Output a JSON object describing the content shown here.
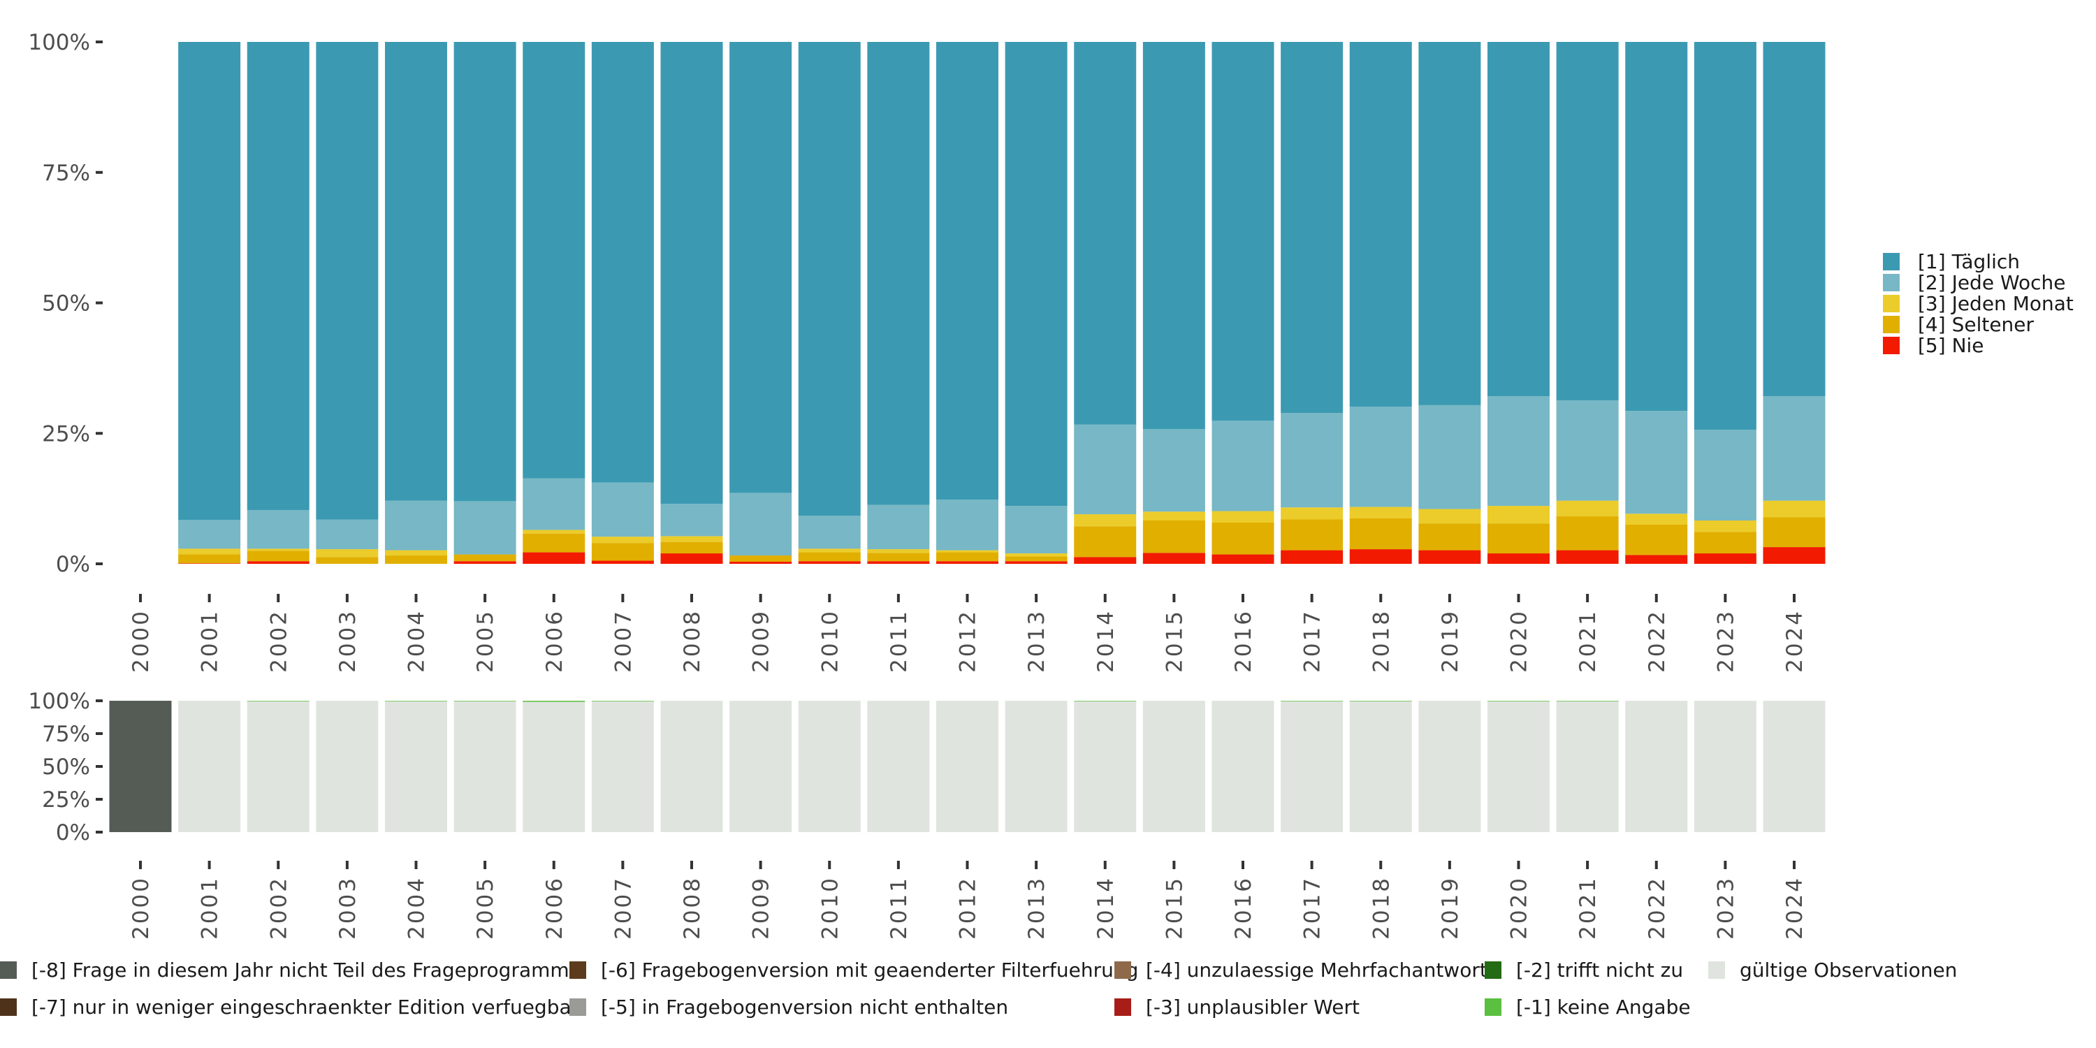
{
  "chart_data": [
    {
      "type": "bar",
      "stacked": true,
      "normalized": true,
      "title": "",
      "xlabel": "",
      "ylabel": "",
      "ylim": [
        0,
        100
      ],
      "yticks": [
        "0%",
        "25%",
        "50%",
        "75%",
        "100%"
      ],
      "grid": false,
      "legend_position": "right",
      "categories": [
        "2000",
        "2001",
        "2002",
        "2003",
        "2004",
        "2005",
        "2006",
        "2007",
        "2008",
        "2009",
        "2010",
        "2011",
        "2012",
        "2013",
        "2014",
        "2015",
        "2016",
        "2017",
        "2018",
        "2019",
        "2020",
        "2021",
        "2022",
        "2023",
        "2024"
      ],
      "series": [
        {
          "name": "[5] Nie",
          "color": "#F21A00",
          "values": [
            null,
            0.1,
            0.5,
            0.0,
            0.0,
            0.5,
            2.2,
            0.6,
            2.0,
            0.4,
            0.5,
            0.5,
            0.5,
            0.5,
            1.3,
            2.1,
            1.8,
            2.6,
            2.8,
            2.6,
            2.0,
            2.6,
            1.7,
            2.0,
            3.2
          ]
        },
        {
          "name": "[4] Seltener",
          "color": "#E1AF00",
          "values": [
            null,
            1.7,
            2.0,
            1.3,
            1.6,
            1.3,
            3.6,
            3.4,
            2.2,
            1.2,
            1.7,
            1.6,
            1.7,
            0.9,
            5.9,
            6.2,
            6.1,
            5.9,
            5.9,
            5.1,
            5.7,
            6.5,
            5.8,
            4.1,
            5.7
          ]
        },
        {
          "name": "[3] Jeden Monat",
          "color": "#EBCC2A",
          "values": [
            null,
            1.1,
            0.4,
            1.5,
            1.0,
            0.0,
            0.7,
            1.2,
            1.1,
            0.0,
            0.7,
            0.7,
            0.4,
            0.6,
            2.3,
            1.7,
            2.2,
            2.3,
            2.2,
            2.8,
            3.4,
            3.0,
            2.1,
            2.2,
            3.2
          ]
        },
        {
          "name": "[2] Jede Woche",
          "color": "#78B7C5",
          "values": [
            null,
            5.5,
            7.4,
            5.7,
            9.5,
            10.2,
            9.9,
            10.4,
            6.2,
            12.0,
            6.3,
            8.5,
            9.7,
            9.1,
            17.2,
            15.8,
            17.3,
            18.1,
            19.2,
            19.9,
            21.0,
            19.2,
            19.7,
            17.4,
            20.0
          ]
        },
        {
          "name": "[1] Täglich",
          "color": "#3B9AB2",
          "values": [
            null,
            91.6,
            89.7,
            91.5,
            87.9,
            88.0,
            83.6,
            84.4,
            88.5,
            86.4,
            90.8,
            88.7,
            87.7,
            88.9,
            73.3,
            74.2,
            72.6,
            71.1,
            69.9,
            69.6,
            67.9,
            68.7,
            70.7,
            74.3,
            67.9
          ]
        }
      ]
    },
    {
      "type": "bar",
      "stacked": true,
      "normalized": true,
      "title": "",
      "xlabel": "",
      "ylabel": "",
      "ylim": [
        0,
        100
      ],
      "yticks": [
        "0%",
        "25%",
        "50%",
        "75%",
        "100%"
      ],
      "grid": false,
      "legend_position": "bottom",
      "categories": [
        "2000",
        "2001",
        "2002",
        "2003",
        "2004",
        "2005",
        "2006",
        "2007",
        "2008",
        "2009",
        "2010",
        "2011",
        "2012",
        "2013",
        "2014",
        "2015",
        "2016",
        "2017",
        "2018",
        "2019",
        "2020",
        "2021",
        "2022",
        "2023",
        "2024"
      ],
      "series": [
        {
          "name": "gültige Observationen",
          "color": "#E0E4DF",
          "values": [
            0,
            100,
            99.6,
            100,
            99.6,
            99.6,
            99.2,
            99.6,
            100,
            100,
            100,
            100,
            100,
            100,
            99.6,
            100,
            100,
            99.6,
            99.6,
            100,
            99.6,
            99.6,
            100,
            100,
            100
          ]
        },
        {
          "name": "[-1] keine Angabe",
          "color": "#5BBF3F",
          "values": [
            0,
            0,
            0.4,
            0,
            0.4,
            0.4,
            0.8,
            0.4,
            0,
            0,
            0,
            0,
            0,
            0,
            0.4,
            0,
            0,
            0.4,
            0.4,
            0,
            0.4,
            0.4,
            0,
            0,
            0
          ]
        },
        {
          "name": "[-8] Frage in diesem Jahr nicht Teil des Frageprogramms",
          "color": "#555B55",
          "values": [
            100,
            0,
            0,
            0,
            0,
            0,
            0,
            0,
            0,
            0,
            0,
            0,
            0,
            0,
            0,
            0,
            0,
            0,
            0,
            0,
            0,
            0,
            0,
            0,
            0
          ]
        }
      ]
    }
  ],
  "top_legend": [
    {
      "label": "[1] Täglich",
      "color": "#3B9AB2"
    },
    {
      "label": "[2] Jede Woche",
      "color": "#78B7C5"
    },
    {
      "label": "[3] Jeden Monat",
      "color": "#EBCC2A"
    },
    {
      "label": "[4] Seltener",
      "color": "#E1AF00"
    },
    {
      "label": "[5] Nie",
      "color": "#F21A00"
    }
  ],
  "bottom_legend": [
    {
      "label": "[-8] Frage in diesem Jahr nicht Teil des Frageprogramms",
      "color": "#555B55"
    },
    {
      "label": "[-7] nur in weniger eingeschraenkter Edition verfuegbar",
      "color": "#4E331A"
    },
    {
      "label": "[-6] Fragebogenversion mit geaenderter Filterfuehrung",
      "color": "#5C3C1C"
    },
    {
      "label": "[-5] in Fragebogenversion nicht enthalten",
      "color": "#9A9B96"
    },
    {
      "label": "[-4] unzulaessige Mehrfachantwort",
      "color": "#8E6A4A"
    },
    {
      "label": "[-3] unplausibler Wert",
      "color": "#A81D18"
    },
    {
      "label": "[-2] trifft nicht zu",
      "color": "#236B14"
    },
    {
      "label": "[-1] keine Angabe",
      "color": "#5BBF3F"
    },
    {
      "label": "gültige Observationen",
      "color": "#E0E4DF"
    }
  ]
}
